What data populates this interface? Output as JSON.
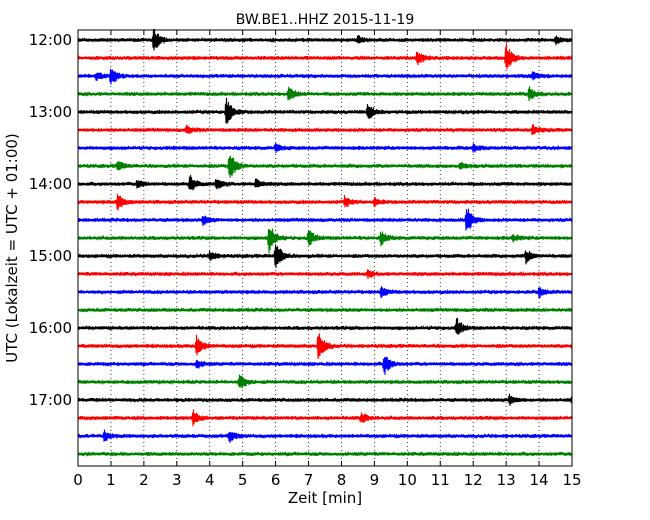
{
  "chart_data": {
    "type": "line",
    "title": "BW.BE1..HHZ 2015-11-19",
    "xlabel": "Zeit  [min]",
    "ylabel": "UTC (Lokalzeit = UTC + 01:00)",
    "xlim": [
      0,
      15
    ],
    "x_ticks": [
      "0",
      "1",
      "2",
      "3",
      "4",
      "5",
      "6",
      "7",
      "8",
      "9",
      "10",
      "11",
      "12",
      "13",
      "14",
      "15"
    ],
    "y_ticks": [
      "12:00",
      "13:00",
      "14:00",
      "15:00",
      "16:00",
      "17:00"
    ],
    "grid": "vertical dotted",
    "trace_interval_minutes": 15,
    "colors": [
      "#000000",
      "#ff0000",
      "#0000ff",
      "#008000"
    ],
    "traces": [
      {
        "start": "12:00",
        "color": "#000000",
        "events": [
          {
            "t": 2.3,
            "amp": 1.3
          },
          {
            "t": 8.5,
            "amp": 0.4
          },
          {
            "t": 14.5,
            "amp": 0.4
          }
        ]
      },
      {
        "start": "12:15",
        "color": "#ff0000",
        "events": [
          {
            "t": 10.3,
            "amp": 0.8
          },
          {
            "t": 13.0,
            "amp": 1.6
          }
        ]
      },
      {
        "start": "12:30",
        "color": "#0000ff",
        "events": [
          {
            "t": 1.0,
            "amp": 1.1
          },
          {
            "t": 0.55,
            "amp": 0.4
          },
          {
            "t": 13.8,
            "amp": 0.4
          }
        ]
      },
      {
        "start": "12:45",
        "color": "#008000",
        "events": [
          {
            "t": 6.4,
            "amp": 0.9
          },
          {
            "t": 13.7,
            "amp": 0.7
          }
        ]
      },
      {
        "start": "13:00",
        "color": "#000000",
        "events": [
          {
            "t": 4.5,
            "amp": 1.6
          },
          {
            "t": 8.8,
            "amp": 0.9
          }
        ]
      },
      {
        "start": "13:15",
        "color": "#ff0000",
        "events": [
          {
            "t": 3.3,
            "amp": 0.4
          },
          {
            "t": 13.8,
            "amp": 0.5
          }
        ]
      },
      {
        "start": "13:30",
        "color": "#0000ff",
        "events": [
          {
            "t": 6.0,
            "amp": 0.4
          },
          {
            "t": 12.0,
            "amp": 0.4
          }
        ]
      },
      {
        "start": "13:45",
        "color": "#008000",
        "events": [
          {
            "t": 1.2,
            "amp": 0.5
          },
          {
            "t": 4.6,
            "amp": 1.6
          },
          {
            "t": 11.6,
            "amp": 0.4
          }
        ]
      },
      {
        "start": "14:00",
        "color": "#000000",
        "events": [
          {
            "t": 1.8,
            "amp": 0.5
          },
          {
            "t": 3.4,
            "amp": 0.9
          },
          {
            "t": 4.2,
            "amp": 0.6
          },
          {
            "t": 5.4,
            "amp": 0.5
          }
        ]
      },
      {
        "start": "14:15",
        "color": "#ff0000",
        "events": [
          {
            "t": 1.2,
            "amp": 0.9
          },
          {
            "t": 8.1,
            "amp": 0.6
          },
          {
            "t": 9.0,
            "amp": 0.4
          }
        ]
      },
      {
        "start": "14:30",
        "color": "#0000ff",
        "events": [
          {
            "t": 3.8,
            "amp": 0.5
          },
          {
            "t": 11.8,
            "amp": 1.5
          }
        ]
      },
      {
        "start": "14:45",
        "color": "#008000",
        "events": [
          {
            "t": 5.8,
            "amp": 1.6
          },
          {
            "t": 7.0,
            "amp": 0.9
          },
          {
            "t": 9.2,
            "amp": 0.7
          },
          {
            "t": 13.2,
            "amp": 0.4
          }
        ]
      },
      {
        "start": "15:00",
        "color": "#000000",
        "events": [
          {
            "t": 6.0,
            "amp": 1.6
          },
          {
            "t": 4.0,
            "amp": 0.5
          },
          {
            "t": 13.6,
            "amp": 0.7
          }
        ]
      },
      {
        "start": "15:15",
        "color": "#ff0000",
        "events": [
          {
            "t": 8.8,
            "amp": 0.4
          }
        ]
      },
      {
        "start": "15:30",
        "color": "#0000ff",
        "events": [
          {
            "t": 9.2,
            "amp": 0.5
          },
          {
            "t": 14.0,
            "amp": 0.5
          }
        ]
      },
      {
        "start": "15:45",
        "color": "#008000",
        "events": []
      },
      {
        "start": "16:00",
        "color": "#000000",
        "events": [
          {
            "t": 11.5,
            "amp": 1.0
          }
        ]
      },
      {
        "start": "16:15",
        "color": "#ff0000",
        "events": [
          {
            "t": 3.6,
            "amp": 1.2
          },
          {
            "t": 7.3,
            "amp": 1.6
          }
        ]
      },
      {
        "start": "16:30",
        "color": "#0000ff",
        "events": [
          {
            "t": 3.6,
            "amp": 0.4
          },
          {
            "t": 9.3,
            "amp": 1.1
          }
        ]
      },
      {
        "start": "16:45",
        "color": "#008000",
        "events": [
          {
            "t": 4.9,
            "amp": 0.9
          }
        ]
      },
      {
        "start": "17:00",
        "color": "#000000",
        "events": [
          {
            "t": 13.1,
            "amp": 0.5
          },
          {
            "t": 15.0,
            "amp": 0.5
          }
        ]
      },
      {
        "start": "17:15",
        "color": "#ff0000",
        "events": [
          {
            "t": 3.5,
            "amp": 0.8
          },
          {
            "t": 8.6,
            "amp": 0.6
          }
        ]
      },
      {
        "start": "17:30",
        "color": "#0000ff",
        "events": [
          {
            "t": 0.8,
            "amp": 0.5
          },
          {
            "t": 4.6,
            "amp": 0.6
          }
        ]
      },
      {
        "start": "17:45",
        "color": "#008000",
        "events": []
      }
    ]
  }
}
